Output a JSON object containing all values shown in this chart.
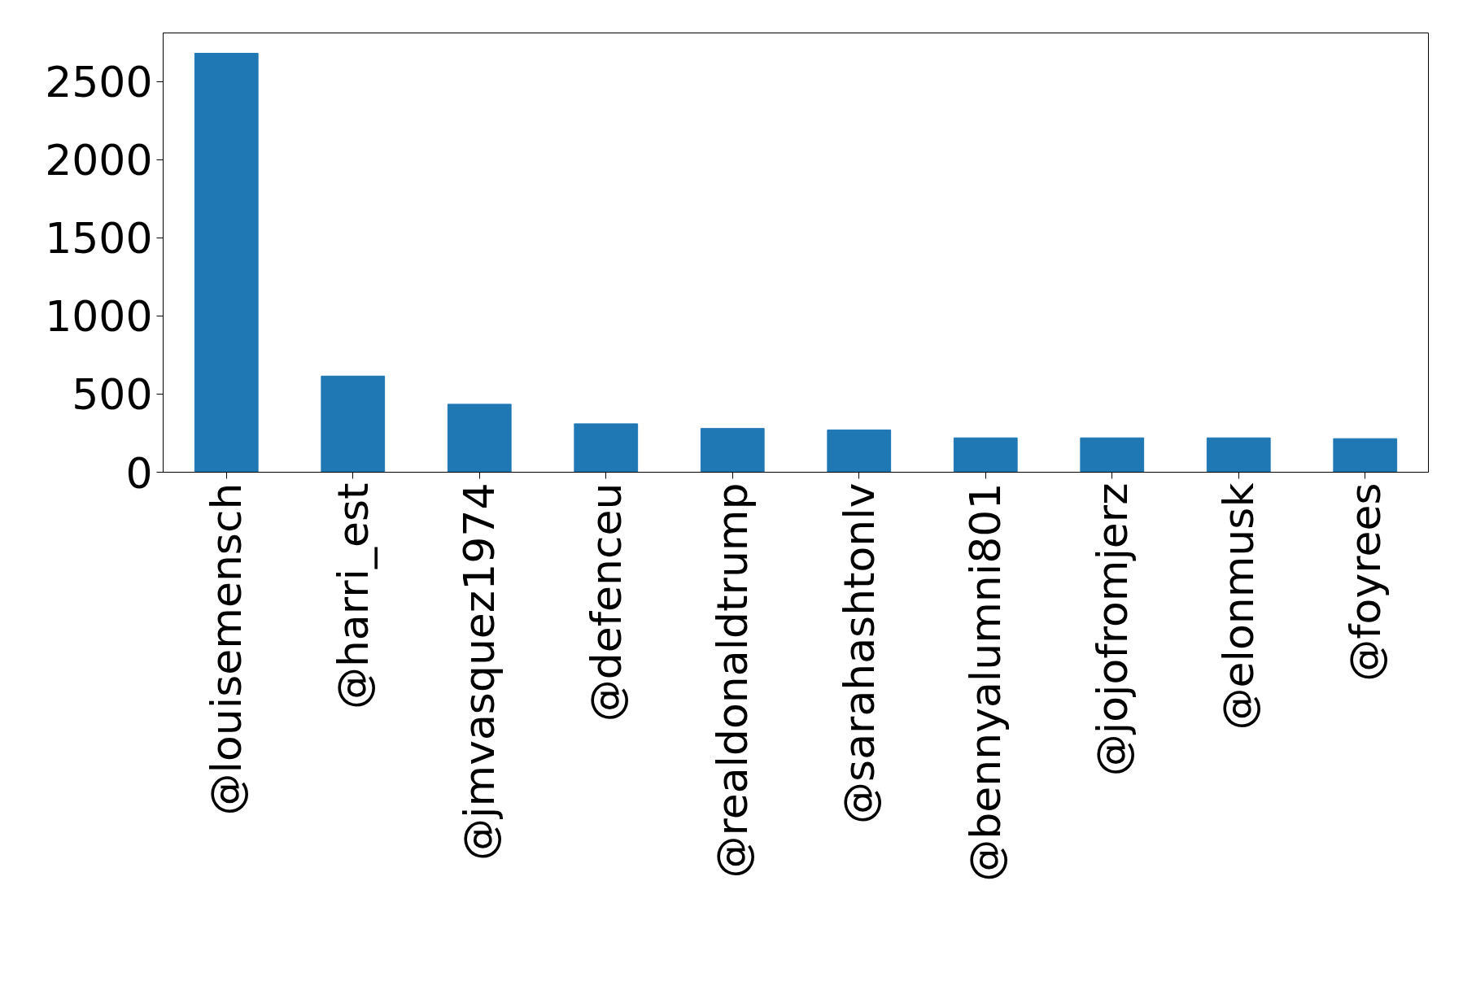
{
  "chart_data": {
    "type": "bar",
    "categories": [
      "@louisemensch",
      "@harri_est",
      "@jmvasquez1974",
      "@defenceu",
      "@realdonaldtrump",
      "@sarahashtonlv",
      "@bennyalumni801",
      "@jojofromjerz",
      "@elonmusk",
      "@foyrees"
    ],
    "values": [
      2680,
      615,
      435,
      310,
      280,
      270,
      220,
      220,
      220,
      215
    ],
    "color": "#1f77b4",
    "ylim": [
      0,
      2810
    ],
    "yticks": [
      0,
      500,
      1000,
      1500,
      2000,
      2500
    ],
    "grid": false
  }
}
